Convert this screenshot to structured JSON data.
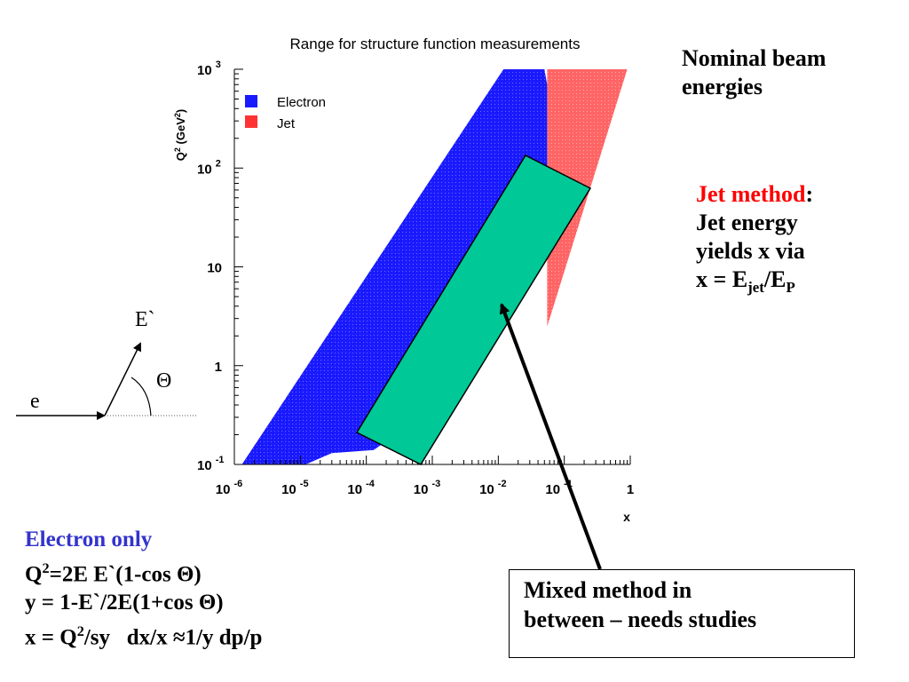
{
  "chart_data": {
    "type": "area",
    "title": "Range for structure function measurements",
    "xlabel": "x",
    "ylabel": "Q2 (GeV2)",
    "xscale": "log",
    "yscale": "log",
    "xlim": [
      1e-06,
      1
    ],
    "ylim": [
      0.1,
      1000
    ],
    "x_ticks": [
      {
        "base": "10",
        "exp": "-6"
      },
      {
        "base": "10",
        "exp": "-5"
      },
      {
        "base": "10",
        "exp": "-4"
      },
      {
        "base": "10",
        "exp": "-3"
      },
      {
        "base": "10",
        "exp": "-2"
      },
      {
        "base": "10",
        "exp": "-1"
      },
      {
        "base": "1",
        "exp": ""
      }
    ],
    "y_ticks": [
      {
        "base": "10",
        "exp": "-1"
      },
      {
        "base": "1",
        "exp": ""
      },
      {
        "base": "10",
        "exp": ""
      },
      {
        "base": "10",
        "exp": "2"
      },
      {
        "base": "10",
        "exp": "3"
      }
    ],
    "legend_position": "top-left",
    "series": [
      {
        "name": "Electron",
        "color": "#1a1aff",
        "polygon": [
          [
            1.3e-06,
            0.1
          ],
          [
            1.2e-05,
            0.1
          ],
          [
            3e-05,
            0.13
          ],
          [
            0.00013,
            0.14
          ],
          [
            0.00022,
            0.18
          ],
          [
            0.001,
            1.0
          ],
          [
            0.004,
            3.0
          ],
          [
            0.02,
            10
          ],
          [
            0.055,
            50
          ],
          [
            0.055,
            700
          ],
          [
            0.05,
            1000
          ],
          [
            0.012,
            1000
          ]
        ]
      },
      {
        "name": "Jet",
        "color": "#ff5555",
        "polygon": [
          [
            0.055,
            1000
          ],
          [
            0.9,
            1000
          ],
          [
            0.06,
            3.0
          ],
          [
            0.055,
            2.5
          ]
        ]
      }
    ]
  },
  "right_title": {
    "line1": "Nominal beam",
    "line2": "energies"
  },
  "jet_method": {
    "heading": "Jet method",
    "colon": ":",
    "line1": "Jet energy",
    "line2": "yields x via",
    "formula_prefix": "x = E",
    "sub_jet": "jet",
    "slash": "/E",
    "sub_p": "P"
  },
  "diagram": {
    "e_label": "e",
    "eprime_label": "E`",
    "theta_label": "Θ"
  },
  "electron_only": {
    "heading": "Electron only",
    "l1_a": "Q",
    "l1_sup": "2",
    "l1_b": "=2E E`(1-cos Θ)",
    "l2": "y = 1-E`/2E(1+cos Θ)",
    "l3_a": "x = Q",
    "l3_sup": "2",
    "l3_b": "/sy   dx/x ≈1/y dp/p"
  },
  "mixed_box": {
    "line1": "Mixed method in",
    "line2": "between – needs studies"
  },
  "colors": {
    "mixed_band": "#00c896",
    "heading_red": "#ff0000",
    "heading_blue": "#3333cc"
  }
}
